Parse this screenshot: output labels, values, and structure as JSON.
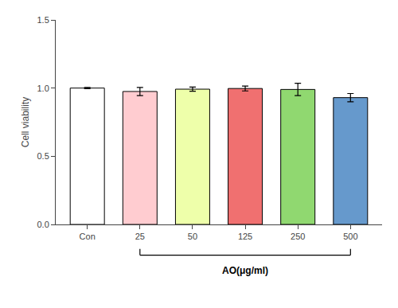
{
  "chart_data": {
    "type": "bar",
    "categories": [
      "Con",
      "25",
      "50",
      "125",
      "250",
      "500"
    ],
    "values": [
      1.0,
      0.975,
      0.992,
      0.997,
      0.99,
      0.93
    ],
    "errors": [
      0.005,
      0.03,
      0.015,
      0.018,
      0.045,
      0.03
    ],
    "colors": [
      "#FFFFFF",
      "#FFCCD0",
      "#EEFFAA",
      "#F07070",
      "#90D870",
      "#6699CC"
    ],
    "ylabel": "Cell viability",
    "xlabel": "AO(μg/ml)",
    "ylim": [
      0.0,
      1.5
    ],
    "yticks": [
      {
        "value": 0.0,
        "label": "0.0"
      },
      0.5,
      {
        "value": 1.0,
        "label": "1.0"
      },
      1.5
    ],
    "grid": false
  }
}
